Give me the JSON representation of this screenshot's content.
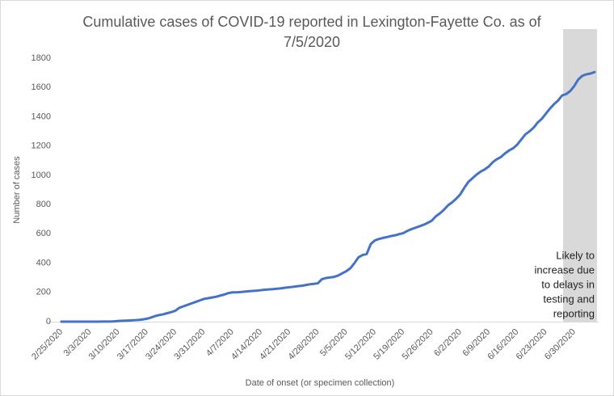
{
  "chart_data": {
    "type": "line",
    "title": "Cumulative cases of COVID-19 reported in Lexington-Fayette Co.  as of 7/5/2020",
    "x_label": "Date of onset (or specimen collection)",
    "y_label": "Number  of cases",
    "annotation": [
      "Likely to",
      "increase due",
      "to delays in",
      "testing and",
      "reporting"
    ],
    "categories": [
      "2/25/2020",
      null,
      null,
      null,
      null,
      null,
      null,
      "3/3/2020",
      null,
      null,
      null,
      null,
      null,
      null,
      "3/10/2020",
      null,
      null,
      null,
      null,
      null,
      null,
      "3/17/2020",
      null,
      null,
      null,
      null,
      null,
      null,
      "3/24/2020",
      null,
      null,
      null,
      null,
      null,
      null,
      "3/31/2020",
      null,
      null,
      null,
      null,
      null,
      null,
      "4/7/2020",
      null,
      null,
      null,
      null,
      null,
      null,
      "4/14/2020",
      null,
      null,
      null,
      null,
      null,
      null,
      "4/21/2020",
      null,
      null,
      null,
      null,
      null,
      null,
      "4/28/2020",
      null,
      null,
      null,
      null,
      null,
      null,
      "5/5/2020",
      null,
      null,
      null,
      null,
      null,
      null,
      "5/12/2020",
      null,
      null,
      null,
      null,
      null,
      null,
      "5/19/2020",
      null,
      null,
      null,
      null,
      null,
      null,
      "5/26/2020",
      null,
      null,
      null,
      null,
      null,
      null,
      "6/2/2020",
      null,
      null,
      null,
      null,
      null,
      null,
      "6/9/2020",
      null,
      null,
      null,
      null,
      null,
      null,
      "6/16/2020",
      null,
      null,
      null,
      null,
      null,
      null,
      "6/23/2020",
      null,
      null,
      null,
      null,
      null,
      null,
      "6/30/2020",
      null,
      null,
      null,
      null,
      null
    ],
    "values": [
      0,
      0,
      0,
      0,
      0,
      0,
      0,
      0,
      0,
      0,
      1,
      1,
      1,
      2,
      5,
      6,
      7,
      8,
      10,
      12,
      15,
      20,
      28,
      38,
      45,
      50,
      58,
      65,
      75,
      95,
      105,
      115,
      125,
      135,
      145,
      155,
      160,
      165,
      170,
      178,
      185,
      195,
      200,
      200,
      202,
      205,
      208,
      210,
      212,
      215,
      218,
      220,
      222,
      225,
      228,
      232,
      235,
      238,
      242,
      245,
      250,
      255,
      258,
      262,
      290,
      298,
      302,
      306,
      315,
      330,
      345,
      365,
      400,
      440,
      455,
      462,
      530,
      555,
      565,
      572,
      578,
      585,
      590,
      598,
      605,
      620,
      632,
      642,
      652,
      662,
      675,
      690,
      720,
      740,
      765,
      795,
      815,
      840,
      870,
      915,
      955,
      980,
      1005,
      1025,
      1040,
      1060,
      1090,
      1110,
      1125,
      1150,
      1170,
      1185,
      1210,
      1245,
      1280,
      1300,
      1325,
      1360,
      1385,
      1420,
      1455,
      1485,
      1510,
      1545,
      1555,
      1575,
      1610,
      1655,
      1680,
      1690,
      1695,
      1705
    ],
    "color": "#4472c4",
    "ylim": [
      0,
      1800
    ],
    "yticks": [
      0,
      200,
      400,
      600,
      800,
      1000,
      1200,
      1400,
      1600,
      1800
    ],
    "grid": false
  }
}
